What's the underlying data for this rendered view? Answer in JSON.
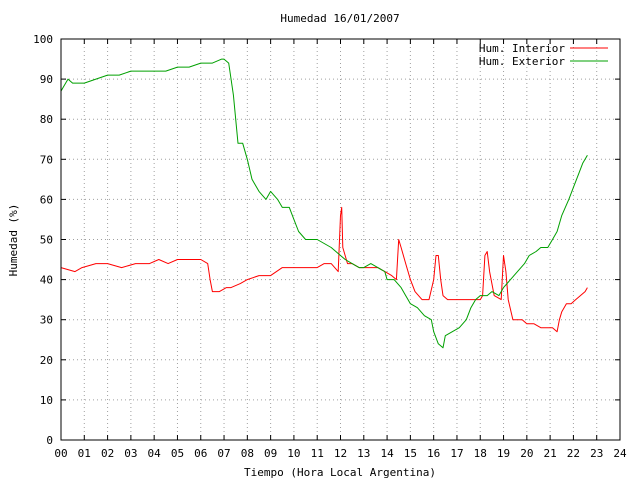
{
  "chart_data": {
    "type": "line",
    "title": "Humedad 16/01/2007",
    "xlabel": "Tiempo (Hora Local Argentina)",
    "ylabel": "Humedad (%)",
    "xlim": [
      0,
      24
    ],
    "ylim": [
      0,
      100
    ],
    "x_ticks": [
      "00",
      "01",
      "02",
      "03",
      "04",
      "05",
      "06",
      "07",
      "08",
      "09",
      "10",
      "11",
      "12",
      "13",
      "14",
      "15",
      "16",
      "17",
      "18",
      "19",
      "20",
      "21",
      "22",
      "23",
      "24"
    ],
    "y_ticks": [
      0,
      10,
      20,
      30,
      40,
      50,
      60,
      70,
      80,
      90,
      100
    ],
    "grid": true,
    "legend_position": "top-right",
    "series": [
      {
        "name": "Hum. Interior",
        "color": "#ff0000",
        "x": [
          0.0,
          0.6,
          0.9,
          1.5,
          2.0,
          2.6,
          3.2,
          3.8,
          4.2,
          4.6,
          5.0,
          5.5,
          6.0,
          6.3,
          6.4,
          6.5,
          6.8,
          7.1,
          7.3,
          7.7,
          8.0,
          8.5,
          9.0,
          9.5,
          10.0,
          10.5,
          11.0,
          11.3,
          11.6,
          11.9,
          12.0,
          12.05,
          12.1,
          12.3,
          12.5,
          12.8,
          13.0,
          13.3,
          13.6,
          13.9,
          14.2,
          14.4,
          14.5,
          14.6,
          14.8,
          15.0,
          15.2,
          15.5,
          15.8,
          16.0,
          16.1,
          16.2,
          16.3,
          16.4,
          16.6,
          16.9,
          17.2,
          17.5,
          17.8,
          18.0,
          18.1,
          18.2,
          18.3,
          18.4,
          18.6,
          18.9,
          19.0,
          19.1,
          19.2,
          19.4,
          19.6,
          19.8,
          20.0,
          20.3,
          20.6,
          20.9,
          21.1,
          21.3,
          21.4,
          21.5,
          21.7,
          21.9,
          22.1,
          22.3,
          22.5,
          22.6
        ],
        "values": [
          43,
          42,
          43,
          44,
          44,
          43,
          44,
          44,
          45,
          44,
          45,
          45,
          45,
          44,
          40,
          37,
          37,
          38,
          38,
          39,
          40,
          41,
          41,
          43,
          43,
          43,
          43,
          44,
          44,
          42,
          56,
          58,
          48,
          44,
          44,
          43,
          43,
          43,
          43,
          42,
          41,
          40,
          50,
          48,
          44,
          40,
          37,
          35,
          35,
          40,
          46,
          46,
          40,
          36,
          35,
          35,
          35,
          35,
          35,
          35,
          36,
          46,
          47,
          42,
          36,
          35,
          46,
          42,
          35,
          30,
          30,
          30,
          29,
          29,
          28,
          28,
          28,
          27,
          30,
          32,
          34,
          34,
          35,
          36,
          37,
          38
        ]
      },
      {
        "name": "Hum. Exterior",
        "color": "#00a000",
        "x": [
          0.0,
          0.1,
          0.3,
          0.5,
          1.0,
          1.5,
          2.0,
          2.5,
          3.0,
          3.5,
          4.0,
          4.5,
          5.0,
          5.5,
          6.0,
          6.5,
          6.9,
          7.0,
          7.2,
          7.4,
          7.6,
          7.8,
          8.0,
          8.2,
          8.5,
          8.8,
          9.0,
          9.3,
          9.5,
          9.8,
          10.0,
          10.2,
          10.5,
          10.8,
          11.0,
          11.3,
          11.6,
          12.0,
          12.2,
          12.5,
          12.8,
          13.0,
          13.3,
          13.6,
          13.9,
          14.0,
          14.3,
          14.6,
          14.8,
          15.0,
          15.3,
          15.6,
          15.9,
          16.0,
          16.2,
          16.4,
          16.5,
          16.8,
          17.1,
          17.4,
          17.6,
          17.8,
          18.0,
          18.3,
          18.5,
          18.8,
          19.0,
          19.3,
          19.6,
          19.9,
          20.1,
          20.4,
          20.6,
          20.9,
          21.1,
          21.3,
          21.5,
          21.8,
          22.0,
          22.2,
          22.4,
          22.6
        ],
        "values": [
          87,
          88,
          90,
          89,
          89,
          90,
          91,
          91,
          92,
          92,
          92,
          92,
          93,
          93,
          94,
          94,
          95,
          95,
          94,
          86,
          74,
          74,
          70,
          65,
          62,
          60,
          62,
          60,
          58,
          58,
          55,
          52,
          50,
          50,
          50,
          49,
          48,
          46,
          45,
          44,
          43,
          43,
          44,
          43,
          42,
          40,
          40,
          38,
          36,
          34,
          33,
          31,
          30,
          27,
          24,
          23,
          26,
          27,
          28,
          30,
          33,
          35,
          36,
          36,
          37,
          36,
          38,
          40,
          42,
          44,
          46,
          47,
          48,
          48,
          50,
          52,
          56,
          60,
          63,
          66,
          69,
          71
        ]
      }
    ]
  }
}
